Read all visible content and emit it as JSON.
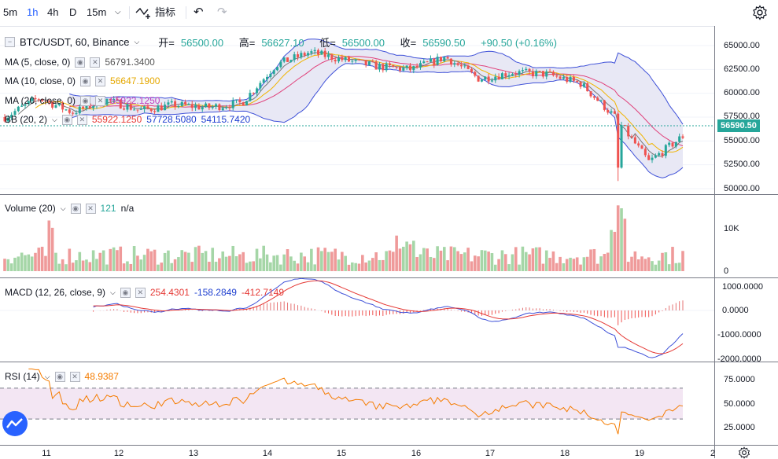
{
  "toolbar": {
    "intervals": [
      {
        "label": "5m",
        "active": false
      },
      {
        "label": "1h",
        "active": true
      },
      {
        "label": "4h",
        "active": false
      },
      {
        "label": "D",
        "active": false
      },
      {
        "label": "15m",
        "active": false
      }
    ],
    "indicators_label": "指标"
  },
  "symbol": {
    "title": "BTC/USDT, 60, Binance",
    "open_label": "开=",
    "open_value": "56500.00",
    "high_label": "高=",
    "high_value": "56627.10",
    "low_label": "低=",
    "low_value": "56500.00",
    "close_label": "收=",
    "close_value": "56590.50",
    "change": "+90.50 (+0.16%)"
  },
  "main_legend": [
    {
      "name": "MA (5, close, 0)",
      "values": [
        "56791.3400"
      ],
      "colors": [
        "#555555"
      ]
    },
    {
      "name": "MA (10, close, 0)",
      "values": [
        "56647.1900"
      ],
      "colors": [
        "#e5a800"
      ]
    },
    {
      "name": "MA (20, close, 0)",
      "values": [
        "55922.1250"
      ],
      "colors": [
        "#c040c0"
      ]
    },
    {
      "name": "BB (20, 2)",
      "values": [
        "55922.1250",
        "57728.5080",
        "54115.7420"
      ],
      "colors": [
        "#e53935",
        "#1e3fd0",
        "#1e3fd0"
      ]
    }
  ],
  "price_axis": [
    "65000.00",
    "62500.00",
    "60000.00",
    "57500.00",
    "55000.00",
    "52500.00",
    "50000.00"
  ],
  "last_price": "56590.50",
  "volume": {
    "name": "Volume (20)",
    "value": "121",
    "ma": "n/a",
    "axis": [
      "10K",
      "0"
    ]
  },
  "macd": {
    "name": "MACD (12, 26, close, 9)",
    "values": [
      "254.4301",
      "-158.2849",
      "-412.7149"
    ],
    "colors": [
      "#e53935",
      "#1e3fd0",
      "#e53935"
    ],
    "axis": [
      "1000.0000",
      "0.0000",
      "-1000.0000",
      "-2000.0000"
    ]
  },
  "rsi": {
    "name": "RSI (14)",
    "value": "48.9387",
    "axis": [
      "75.0000",
      "50.0000",
      "25.0000"
    ]
  },
  "time_axis": [
    "11",
    "12",
    "13",
    "14",
    "15",
    "16",
    "17",
    "18",
    "19",
    "2"
  ],
  "colors": {
    "up": "#26a69a",
    "down": "#ef5350",
    "accent": "#2962ff",
    "bb_fill": "#e8e8f5",
    "rsi_fill": "#f3e6f3"
  },
  "chart_data": {
    "type": "line",
    "price_anchors": {
      "x": [
        0,
        5,
        10,
        15,
        20,
        25,
        30,
        35,
        40,
        45,
        50,
        55,
        60,
        65,
        70,
        75,
        80,
        85,
        90,
        95,
        100
      ],
      "close": [
        57500,
        59500,
        58000,
        59300,
        58200,
        58800,
        58500,
        59000,
        63000,
        64300,
        63500,
        62800,
        62500,
        63800,
        61500,
        62200,
        62000,
        61000,
        57500,
        52800,
        55500
      ]
    }
  }
}
